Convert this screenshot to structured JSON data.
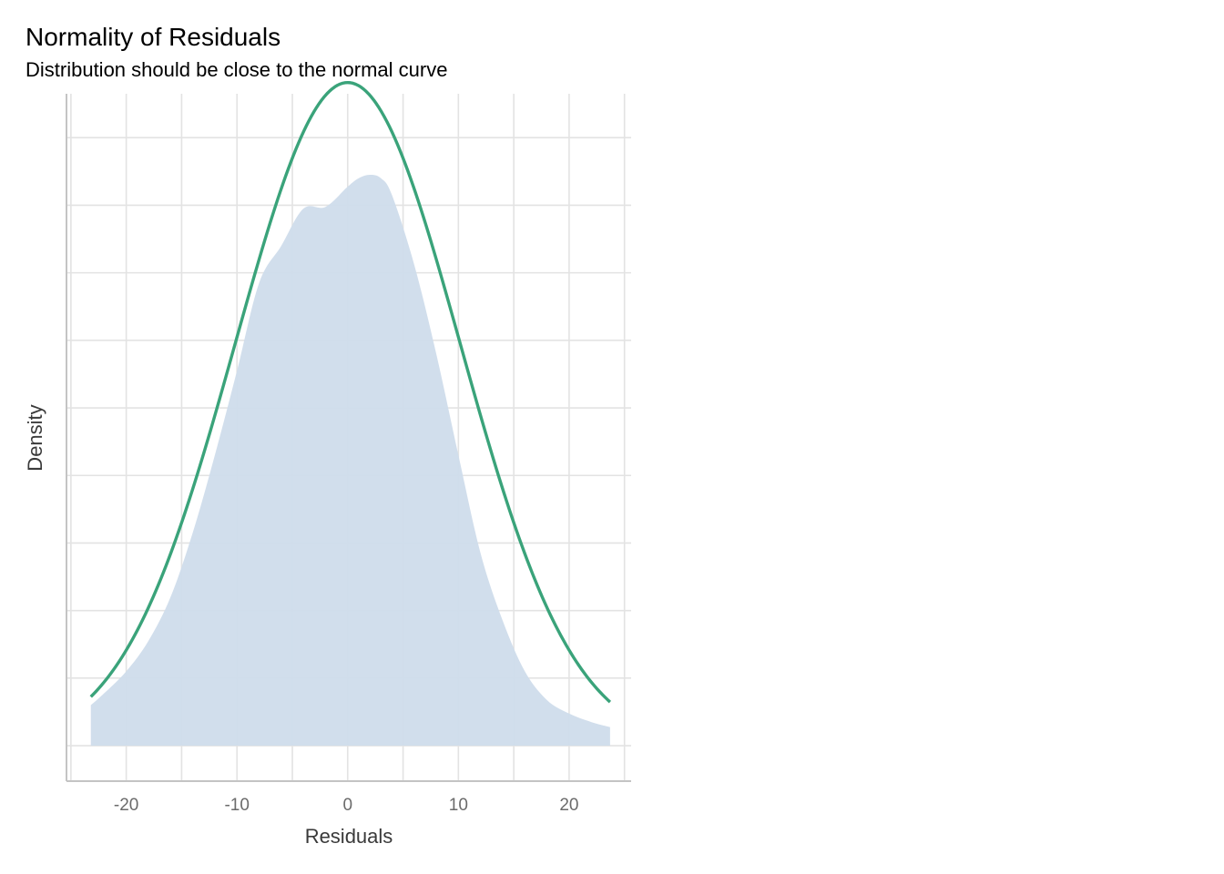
{
  "chart_data": {
    "type": "area",
    "title": "Normality of Residuals",
    "subtitle": "Distribution should be close to the normal curve",
    "xlabel": "Residuals",
    "ylabel": "Density",
    "xlim": [
      -25.4,
      25.6
    ],
    "x_ticks": [
      -20,
      -10,
      0,
      10,
      20
    ],
    "x_tick_labels": [
      "-20",
      "-10",
      "0",
      "10",
      "20"
    ],
    "y_ticks_labeled": false,
    "ylim": [
      -0.0021,
      0.0386
    ],
    "y_gridlines": [
      0,
      0.004,
      0.008,
      0.012,
      0.016,
      0.02,
      0.024,
      0.028,
      0.032,
      0.036
    ],
    "grid": true,
    "series": [
      {
        "type": "area",
        "color": "#cfdceb",
        "x": [
          -23.2,
          -22,
          -20,
          -18,
          -16,
          -14,
          -12,
          -10,
          -8,
          -6,
          -4,
          -2,
          0,
          1,
          2,
          3,
          4,
          6,
          8,
          10,
          12,
          14,
          16,
          18,
          20,
          22,
          23.7
        ],
        "y": [
          0.0024,
          0.0031,
          0.0044,
          0.0062,
          0.0088,
          0.0126,
          0.0172,
          0.0222,
          0.0274,
          0.0296,
          0.0318,
          0.0319,
          0.0331,
          0.0336,
          0.0338,
          0.0336,
          0.0326,
          0.0285,
          0.0232,
          0.0172,
          0.0114,
          0.0074,
          0.0044,
          0.0027,
          0.0019,
          0.0014,
          0.0011
        ]
      },
      {
        "type": "line",
        "color": "#3aa37a",
        "mean": 0,
        "sd": 10.16,
        "x_range": [
          -23.2,
          23.7
        ]
      }
    ]
  }
}
